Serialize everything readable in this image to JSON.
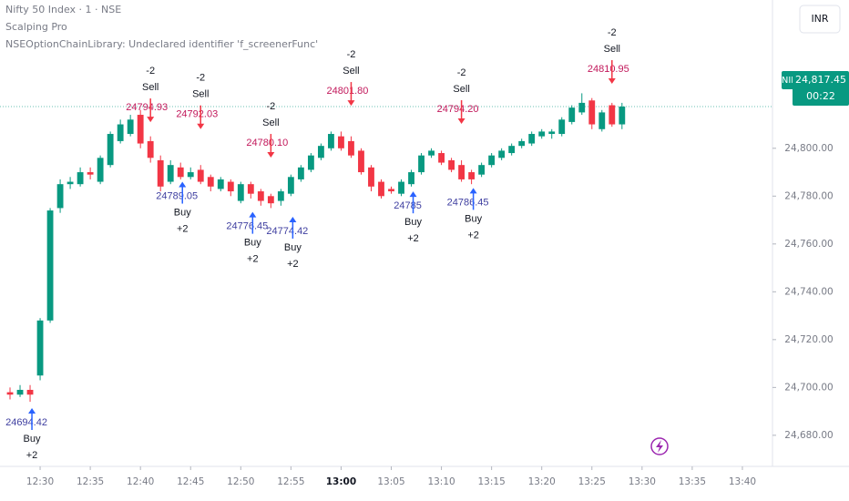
{
  "header": {
    "symbol": "Nifty 50 Index · 1 · NSE",
    "indicator": "Scalping Pro",
    "error": "NSEOptionChainLibrary: Undeclared identifier 'f_screenerFunc'",
    "currency": "INR"
  },
  "price_tag": {
    "name": "NIFTY",
    "price": "24,817.45",
    "countdown": "00:22"
  },
  "chart_data": {
    "type": "candlestick",
    "up_color": "#089981",
    "down_color": "#f23645",
    "ylim": [
      24667,
      24862
    ],
    "yticks": [
      {
        "value": 24680,
        "label": "24,680.00"
      },
      {
        "value": 24700,
        "label": "24,700.00"
      },
      {
        "value": 24720,
        "label": "24,720.00"
      },
      {
        "value": 24740,
        "label": "24,740.00"
      },
      {
        "value": 24760,
        "label": "24,760.00"
      },
      {
        "value": 24780,
        "label": "24,780.00"
      },
      {
        "value": 24800,
        "label": "24,800.00"
      }
    ],
    "xlim": [
      "12:26",
      "13:43"
    ],
    "xticks": [
      "12:30",
      "12:35",
      "12:40",
      "12:45",
      "12:50",
      "12:55",
      "13:00",
      "13:05",
      "13:10",
      "13:15",
      "13:20",
      "13:25",
      "13:30",
      "13:35",
      "13:40"
    ],
    "candles": [
      {
        "x": "12:27",
        "open": 24698,
        "high": 24700,
        "low": 24695,
        "close": 24697
      },
      {
        "x": "12:28",
        "open": 24697,
        "high": 24701,
        "low": 24696,
        "close": 24699
      },
      {
        "x": "12:29",
        "open": 24699,
        "high": 24701,
        "low": 24694,
        "close": 24697
      },
      {
        "x": "12:30",
        "open": 24705,
        "high": 24729,
        "low": 24703,
        "close": 24728
      },
      {
        "x": "12:31",
        "open": 24728,
        "high": 24775,
        "low": 24727,
        "close": 24774
      },
      {
        "x": "12:32",
        "open": 24775,
        "high": 24787,
        "low": 24773,
        "close": 24785
      },
      {
        "x": "12:33",
        "open": 24785,
        "high": 24788,
        "low": 24783,
        "close": 24786
      },
      {
        "x": "12:34",
        "open": 24785,
        "high": 24792,
        "low": 24784,
        "close": 24790
      },
      {
        "x": "12:35",
        "open": 24790,
        "high": 24792,
        "low": 24787,
        "close": 24789
      },
      {
        "x": "12:36",
        "open": 24786,
        "high": 24797,
        "low": 24785,
        "close": 24796
      },
      {
        "x": "12:37",
        "open": 24793,
        "high": 24807,
        "low": 24792,
        "close": 24806
      },
      {
        "x": "12:38",
        "open": 24803,
        "high": 24812,
        "low": 24802,
        "close": 24810
      },
      {
        "x": "12:39",
        "open": 24806,
        "high": 24814,
        "low": 24805,
        "close": 24812
      },
      {
        "x": "12:40",
        "open": 24814,
        "high": 24816,
        "low": 24800,
        "close": 24802
      },
      {
        "x": "12:41",
        "open": 24803,
        "high": 24805,
        "low": 24794,
        "close": 24796
      },
      {
        "x": "12:42",
        "open": 24795,
        "high": 24797,
        "low": 24782,
        "close": 24784
      },
      {
        "x": "12:43",
        "open": 24786,
        "high": 24795,
        "low": 24785,
        "close": 24793
      },
      {
        "x": "12:44",
        "open": 24792,
        "high": 24794,
        "low": 24787,
        "close": 24788
      },
      {
        "x": "12:45",
        "open": 24788,
        "high": 24792,
        "low": 24787,
        "close": 24790
      },
      {
        "x": "12:46",
        "open": 24791,
        "high": 24793,
        "low": 24785,
        "close": 24786
      },
      {
        "x": "12:47",
        "open": 24788,
        "high": 24789,
        "low": 24782,
        "close": 24784
      },
      {
        "x": "12:48",
        "open": 24783,
        "high": 24788,
        "low": 24782,
        "close": 24787
      },
      {
        "x": "12:49",
        "open": 24786,
        "high": 24787,
        "low": 24780,
        "close": 24782
      },
      {
        "x": "12:50",
        "open": 24778,
        "high": 24786,
        "low": 24777,
        "close": 24785
      },
      {
        "x": "12:51",
        "open": 24785,
        "high": 24786,
        "low": 24779,
        "close": 24781
      },
      {
        "x": "12:52",
        "open": 24782,
        "high": 24783,
        "low": 24776,
        "close": 24778
      },
      {
        "x": "12:53",
        "open": 24780,
        "high": 24781,
        "low": 24775,
        "close": 24777
      },
      {
        "x": "12:54",
        "open": 24778,
        "high": 24783,
        "low": 24776,
        "close": 24782
      },
      {
        "x": "12:55",
        "open": 24781,
        "high": 24789,
        "low": 24780,
        "close": 24788
      },
      {
        "x": "12:56",
        "open": 24787,
        "high": 24793,
        "low": 24786,
        "close": 24792
      },
      {
        "x": "12:57",
        "open": 24791,
        "high": 24798,
        "low": 24790,
        "close": 24797
      },
      {
        "x": "12:58",
        "open": 24796,
        "high": 24802,
        "low": 24795,
        "close": 24801
      },
      {
        "x": "12:59",
        "open": 24800,
        "high": 24807,
        "low": 24799,
        "close": 24806
      },
      {
        "x": "13:00",
        "open": 24805,
        "high": 24807,
        "low": 24799,
        "close": 24800
      },
      {
        "x": "13:01",
        "open": 24803,
        "high": 24805,
        "low": 24796,
        "close": 24797
      },
      {
        "x": "13:02",
        "open": 24799,
        "high": 24800,
        "low": 24789,
        "close": 24790
      },
      {
        "x": "13:03",
        "open": 24792,
        "high": 24793,
        "low": 24782,
        "close": 24784
      },
      {
        "x": "13:04",
        "open": 24786,
        "high": 24787,
        "low": 24779,
        "close": 24780
      },
      {
        "x": "13:05",
        "open": 24783,
        "high": 24784,
        "low": 24781,
        "close": 24782
      },
      {
        "x": "13:06",
        "open": 24781,
        "high": 24787,
        "low": 24780,
        "close": 24786
      },
      {
        "x": "13:07",
        "open": 24785,
        "high": 24791,
        "low": 24784,
        "close": 24790
      },
      {
        "x": "13:08",
        "open": 24790,
        "high": 24798,
        "low": 24789,
        "close": 24797
      },
      {
        "x": "13:09",
        "open": 24797,
        "high": 24800,
        "low": 24796,
        "close": 24799
      },
      {
        "x": "13:10",
        "open": 24798,
        "high": 24799,
        "low": 24793,
        "close": 24794
      },
      {
        "x": "13:11",
        "open": 24795,
        "high": 24796,
        "low": 24790,
        "close": 24791
      },
      {
        "x": "13:12",
        "open": 24793,
        "high": 24795,
        "low": 24786,
        "close": 24787
      },
      {
        "x": "13:13",
        "open": 24790,
        "high": 24791,
        "low": 24785,
        "close": 24787
      },
      {
        "x": "13:14",
        "open": 24789,
        "high": 24794,
        "low": 24788,
        "close": 24793
      },
      {
        "x": "13:15",
        "open": 24793,
        "high": 24798,
        "low": 24792,
        "close": 24797
      },
      {
        "x": "13:16",
        "open": 24796,
        "high": 24800,
        "low": 24795,
        "close": 24799
      },
      {
        "x": "13:17",
        "open": 24798,
        "high": 24802,
        "low": 24797,
        "close": 24801
      },
      {
        "x": "13:18",
        "open": 24801,
        "high": 24804,
        "low": 24800,
        "close": 24803
      },
      {
        "x": "13:19",
        "open": 24802,
        "high": 24807,
        "low": 24801,
        "close": 24806
      },
      {
        "x": "13:20",
        "open": 24805,
        "high": 24808,
        "low": 24804,
        "close": 24807
      },
      {
        "x": "13:21",
        "open": 24806,
        "high": 24808,
        "low": 24804,
        "close": 24807
      },
      {
        "x": "13:22",
        "open": 24806,
        "high": 24813,
        "low": 24805,
        "close": 24812
      },
      {
        "x": "13:23",
        "open": 24811,
        "high": 24818,
        "low": 24810,
        "close": 24817
      },
      {
        "x": "13:24",
        "open": 24815,
        "high": 24823,
        "low": 24814,
        "close": 24819
      },
      {
        "x": "13:25",
        "open": 24820,
        "high": 24821,
        "low": 24808,
        "close": 24810
      },
      {
        "x": "13:26",
        "open": 24808,
        "high": 24816,
        "low": 24807,
        "close": 24815
      },
      {
        "x": "13:27",
        "open": 24818,
        "high": 24819,
        "low": 24809,
        "close": 24810
      },
      {
        "x": "13:28",
        "open": 24810,
        "high": 24819,
        "low": 24808,
        "close": 24817.45
      }
    ],
    "signals": [
      {
        "x": "12:29",
        "value": 24694.42,
        "value_label": "24694.42",
        "action": "Buy",
        "qty": "+2"
      },
      {
        "x": "12:41",
        "value": 24794.93,
        "value_label": "24794.93",
        "action": "Sell",
        "qty": "-2"
      },
      {
        "x": "12:44",
        "value": 24789.05,
        "value_label": "24789.05",
        "action": "Buy",
        "qty": "+2"
      },
      {
        "x": "12:46",
        "value": 24792.03,
        "value_label": "24792.03",
        "action": "Sell",
        "qty": "-2"
      },
      {
        "x": "12:51",
        "value": 24776.45,
        "value_label": "24776.45",
        "action": "Buy",
        "qty": "+2"
      },
      {
        "x": "12:53",
        "value": 24780.1,
        "value_label": "24780.10",
        "action": "Sell",
        "qty": "-2"
      },
      {
        "x": "12:55",
        "value": 24774.42,
        "value_label": "24774.42",
        "action": "Buy",
        "qty": "+2"
      },
      {
        "x": "13:01",
        "value": 24801.8,
        "value_label": "24801.80",
        "action": "Sell",
        "qty": "-2"
      },
      {
        "x": "13:07",
        "value": 24785,
        "value_label": "24785",
        "action": "Buy",
        "qty": "+2"
      },
      {
        "x": "13:12",
        "value": 24794.2,
        "value_label": "24794.20",
        "action": "Sell",
        "qty": "-2"
      },
      {
        "x": "13:13",
        "value": 24786.45,
        "value_label": "24786.45",
        "action": "Buy",
        "qty": "+2"
      },
      {
        "x": "13:27",
        "value": 24810.95,
        "value_label": "24810.95",
        "action": "Sell",
        "qty": "-2"
      }
    ]
  }
}
